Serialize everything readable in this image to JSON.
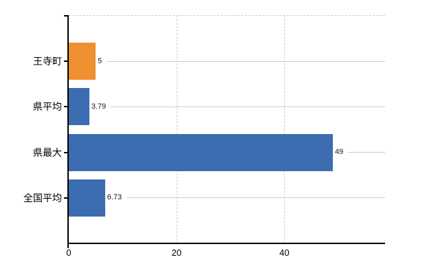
{
  "chart_data": {
    "type": "bar",
    "orientation": "horizontal",
    "title": "",
    "xlabel": "",
    "ylabel": "",
    "categories": [
      "王寺町",
      "県平均",
      "県最大",
      "全国平均"
    ],
    "values": [
      5,
      3.79,
      49,
      6.73
    ],
    "value_labels": [
      "5",
      "3.79",
      "49",
      "6.73"
    ],
    "bar_colors": [
      "#ee9030",
      "#3c6db0",
      "#3c6db0",
      "#3c6db0"
    ],
    "xlim": [
      0,
      58.7
    ],
    "xticks": [
      0,
      20,
      40
    ],
    "xtick_labels": [
      "0",
      "20",
      "40"
    ],
    "grid": "vertical-dashed-at-xticks, horizontal-guide-line-per-category, dashed-top-border",
    "legend": "none"
  },
  "colors": {
    "background": "#ffffff",
    "axis": "#000000",
    "gridline": "#c9c9c9",
    "row_guide_line": "#cccccc",
    "value_label_text": "#1a1a1a",
    "category_label_text": "#000000",
    "tick_label_text": "#000000"
  }
}
